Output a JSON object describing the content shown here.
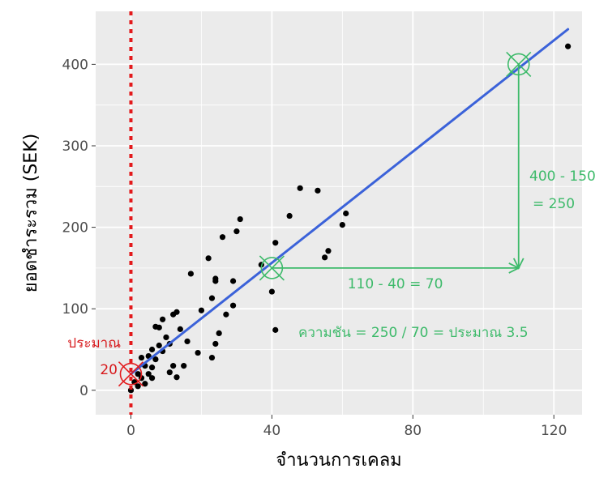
{
  "chart_data": {
    "type": "scatter",
    "xlabel": "จำนวนการเคลม",
    "ylabel": "ยอดชำระรวม (SEK)",
    "xlim": [
      -10,
      128
    ],
    "ylim": [
      -30,
      465
    ],
    "x_ticks": [
      0,
      40,
      80,
      120
    ],
    "y_ticks": [
      0,
      100,
      200,
      300,
      400
    ],
    "x_tick_labels": [
      "0",
      "40",
      "80",
      "120"
    ],
    "y_tick_labels": [
      "0",
      "100",
      "200",
      "300",
      "400"
    ],
    "grid": true,
    "points": [
      {
        "x": 0,
        "y": 0
      },
      {
        "x": 1,
        "y": 10
      },
      {
        "x": 2,
        "y": 5
      },
      {
        "x": 2,
        "y": 20
      },
      {
        "x": 3,
        "y": 40
      },
      {
        "x": 3,
        "y": 15
      },
      {
        "x": 4,
        "y": 8
      },
      {
        "x": 4,
        "y": 30
      },
      {
        "x": 5,
        "y": 20
      },
      {
        "x": 5,
        "y": 42
      },
      {
        "x": 6,
        "y": 15
      },
      {
        "x": 6,
        "y": 28
      },
      {
        "x": 6,
        "y": 50
      },
      {
        "x": 7,
        "y": 38
      },
      {
        "x": 7,
        "y": 78
      },
      {
        "x": 8,
        "y": 55
      },
      {
        "x": 8,
        "y": 77
      },
      {
        "x": 9,
        "y": 48
      },
      {
        "x": 9,
        "y": 87
      },
      {
        "x": 10,
        "y": 65
      },
      {
        "x": 11,
        "y": 22
      },
      {
        "x": 11,
        "y": 57
      },
      {
        "x": 12,
        "y": 30
      },
      {
        "x": 12,
        "y": 93
      },
      {
        "x": 13,
        "y": 16
      },
      {
        "x": 13,
        "y": 96
      },
      {
        "x": 14,
        "y": 75
      },
      {
        "x": 15,
        "y": 30
      },
      {
        "x": 16,
        "y": 60
      },
      {
        "x": 17,
        "y": 143
      },
      {
        "x": 19,
        "y": 46
      },
      {
        "x": 20,
        "y": 98
      },
      {
        "x": 22,
        "y": 162
      },
      {
        "x": 23,
        "y": 40
      },
      {
        "x": 23,
        "y": 113
      },
      {
        "x": 24,
        "y": 57
      },
      {
        "x": 24,
        "y": 137
      },
      {
        "x": 24,
        "y": 134
      },
      {
        "x": 25,
        "y": 70
      },
      {
        "x": 26,
        "y": 188
      },
      {
        "x": 27,
        "y": 93
      },
      {
        "x": 29,
        "y": 104
      },
      {
        "x": 29,
        "y": 134
      },
      {
        "x": 30,
        "y": 195
      },
      {
        "x": 31,
        "y": 210
      },
      {
        "x": 37,
        "y": 154
      },
      {
        "x": 40,
        "y": 121
      },
      {
        "x": 41,
        "y": 181
      },
      {
        "x": 41,
        "y": 74
      },
      {
        "x": 45,
        "y": 214
      },
      {
        "x": 48,
        "y": 248
      },
      {
        "x": 53,
        "y": 245
      },
      {
        "x": 55,
        "y": 163
      },
      {
        "x": 56,
        "y": 171
      },
      {
        "x": 60,
        "y": 203
      },
      {
        "x": 61,
        "y": 217
      },
      {
        "x": 124,
        "y": 422
      }
    ],
    "fit_line": {
      "x1": 0,
      "y1": 20,
      "x2": 124,
      "y2": 443
    },
    "vline_x": 0,
    "markers": [
      {
        "x": 0,
        "y": 20,
        "color": "#e31a1c"
      },
      {
        "x": 40,
        "y": 150,
        "color": "#3dba6a"
      },
      {
        "x": 110,
        "y": 400,
        "color": "#3dba6a"
      }
    ],
    "slope_guide": {
      "x_from": 40,
      "x_to": 110,
      "y_from": 150,
      "y_to": 400
    },
    "annotations": {
      "horizontal": "110 - 40 = 70",
      "vertical_1": "400 - 150",
      "vertical_2": "= 250",
      "slope": "ความชัน = 250 / 70 = ประมาณ 3.5",
      "intercept_1": "ประมาณ",
      "intercept_2": "20"
    },
    "colors": {
      "panel": "#ebebeb",
      "grid": "#ffffff",
      "points": "#000000",
      "fit": "#3b62d9",
      "vline": "#e31a1c",
      "green": "#3dba6a",
      "red": "#d7191c"
    }
  }
}
